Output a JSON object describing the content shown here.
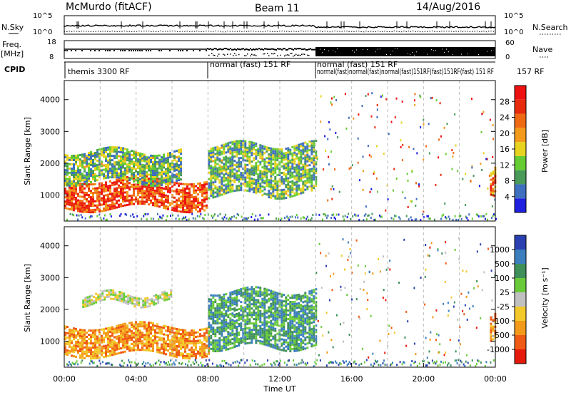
{
  "header": {
    "station": "McMurdo (fitACF)",
    "beam": "Beam 11",
    "date": "14/Aug/2016"
  },
  "top_panels": {
    "nsky_label": "N.Sky",
    "nsearch_label": "N.Search",
    "freq_label_1": "Freq.",
    "freq_label_2": "[MHz]",
    "nave_label": "Nave",
    "cpid_label": "CPID",
    "nsky_ticks": [
      "10^5",
      "10^0"
    ],
    "nsearch_ticks": [
      "10^5",
      "10^0"
    ],
    "freq_ticks": [
      "18",
      "8"
    ],
    "nave_ticks": [
      "60",
      "0"
    ],
    "cpid_segments": [
      {
        "label": "themis 3300 RF",
        "start": 0
      },
      {
        "label": "normal (fast) 151 RF",
        "start": 8
      },
      {
        "label": "normal (fast) 151 RF",
        "start": 14
      }
    ],
    "cpid_overlap_text": "normal(fast)normal(fast)normal(fast)151RF(fast)151RF(fast) 151 RF",
    "cpid_tail": "157 RF"
  },
  "colors": {
    "power_scale": [
      "#1f1fe0",
      "#3f6fbf",
      "#4a9a5a",
      "#66cc33",
      "#e6d21f",
      "#f39a1a",
      "#f06a14",
      "#e82a0c",
      "#ee1111"
    ],
    "velocity_scale": [
      "#2a3fb0",
      "#3b7fbf",
      "#3f8f5a",
      "#6acb3a",
      "#c0c0c0",
      "#f2c82a",
      "#f49a1a",
      "#ef5a14",
      "#e61a0a"
    ]
  },
  "chart_data": [
    {
      "type": "heatmap",
      "title": "Power",
      "xlabel": "",
      "ylabel": "Slant Range [km]",
      "ylim": [
        180,
        4600
      ],
      "x_range_hours": [
        0,
        24
      ],
      "yticks": [
        1000,
        2000,
        3000,
        4000
      ],
      "colorbar": {
        "label": "Power [dB]",
        "range": [
          0,
          32
        ],
        "ticks": [
          4,
          8,
          12,
          16,
          20,
          24,
          28
        ]
      },
      "echo_regions": [
        {
          "t_start": 0,
          "t_end": 7.9,
          "range_low": 600,
          "range_high": 1500,
          "level_db": 28
        },
        {
          "t_start": 0,
          "t_end": 6.5,
          "range_low": 1400,
          "range_high": 2400,
          "level_db": 12
        },
        {
          "t_start": 8,
          "t_end": 14,
          "range_low": 1000,
          "range_high": 2600,
          "level_db": 12
        },
        {
          "t_start": 23.7,
          "t_end": 24,
          "range_low": 1000,
          "range_high": 1800,
          "level_db": 24
        }
      ]
    },
    {
      "type": "heatmap",
      "title": "Velocity",
      "xlabel": "Time UT",
      "ylabel": "Slant Range [km]",
      "ylim": [
        180,
        4600
      ],
      "x_range_hours": [
        0,
        24
      ],
      "xticks": [
        "00:00",
        "04:00",
        "08:00",
        "12:00",
        "16:00",
        "20:00",
        "00:00"
      ],
      "yticks": [
        1000,
        2000,
        3000,
        4000
      ],
      "colorbar": {
        "label": "Velocity [m s^-1]",
        "ticks": [
          "1000",
          "500",
          "100",
          "25",
          "-25",
          "-100",
          "-500",
          "-1000"
        ]
      },
      "echo_regions": [
        {
          "t_start": 0,
          "t_end": 8,
          "range_low": 600,
          "range_high": 1500,
          "velocity": -100
        },
        {
          "t_start": 8,
          "t_end": 14,
          "range_low": 800,
          "range_high": 2600,
          "velocity": 100
        },
        {
          "t_start": 1,
          "t_end": 6,
          "range_low": 2200,
          "range_high": 2500,
          "velocity": 0
        },
        {
          "t_start": 23.7,
          "t_end": 24,
          "range_low": 1000,
          "range_high": 1800,
          "velocity": -100
        }
      ]
    }
  ]
}
